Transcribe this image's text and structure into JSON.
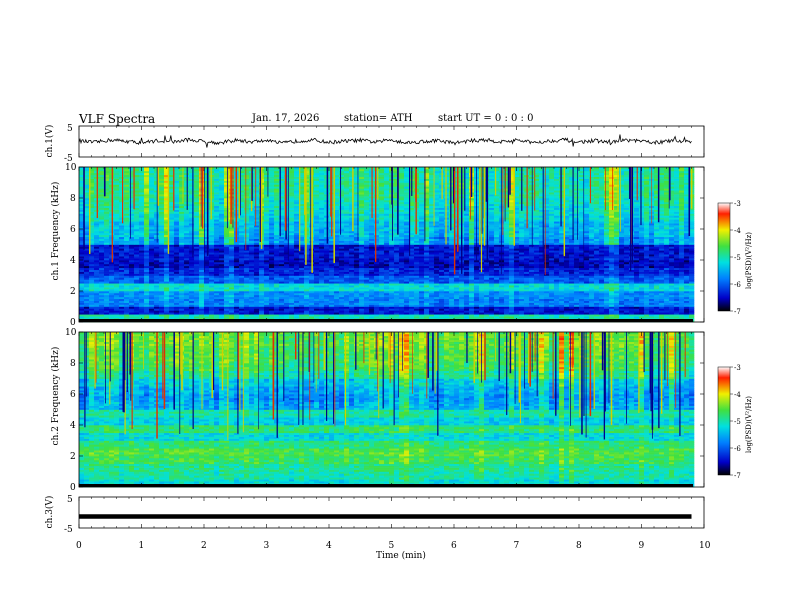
{
  "header": {
    "title": "VLF  Spectra",
    "date": "Jan. 17, 2026",
    "station": "station= ATH",
    "start": "start  UT  =   0  : 0   : 0"
  },
  "chart_data": [
    {
      "type": "line",
      "panel": "ch1-waveform",
      "ylabel": "ch.1(V)",
      "ylim": [
        -5,
        5
      ],
      "yticks": [
        "5",
        "-5"
      ],
      "xlim": [
        0,
        10
      ],
      "x": [
        0,
        0.25,
        0.5,
        0.75,
        1.0,
        1.25,
        1.5,
        1.75,
        2.0,
        2.25,
        2.5,
        2.75,
        3.0,
        3.25,
        3.5,
        3.75,
        4.0,
        4.25,
        4.5,
        4.75,
        5.0,
        5.25,
        5.5,
        5.75,
        6.0,
        6.25,
        6.5,
        6.75,
        7.0,
        7.25,
        7.5,
        7.75,
        8.0,
        8.25,
        8.5,
        8.75,
        9.0,
        9.25,
        9.5,
        9.8
      ],
      "y": [
        0.2,
        -0.3,
        0.5,
        0.1,
        -0.4,
        0.3,
        -0.2,
        0.6,
        0.0,
        -0.5,
        0.4,
        -0.1,
        0.3,
        -0.6,
        0.2,
        0.5,
        -0.3,
        0.1,
        0.4,
        -0.2,
        0.6,
        -0.4,
        0.0,
        0.3,
        -0.5,
        0.2,
        0.5,
        -0.1,
        0.4,
        -0.3,
        0.1,
        0.6,
        -0.2,
        0.3,
        -0.4,
        0.5,
        0.0,
        -0.3,
        0.2,
        0.1
      ]
    },
    {
      "type": "heatmap",
      "panel": "ch1-spectrogram",
      "ylabel": "ch.1 Frequency (kHz)",
      "ylim": [
        0,
        10
      ],
      "yticks": [
        "0",
        "2",
        "4",
        "6",
        "8",
        "10"
      ],
      "xlim": [
        0,
        10
      ],
      "colorbar": {
        "label": "log(PSD)(V²/Hz)",
        "ticks": [
          "-3",
          "-4",
          "-5",
          "-6",
          "-7"
        ],
        "range": [
          -7,
          -3
        ]
      },
      "freq_khz": [
        0.25,
        0.75,
        1.25,
        1.75,
        2.25,
        2.75,
        3.25,
        3.75,
        4.25,
        4.75,
        5.25,
        5.75,
        6.25,
        6.75,
        7.25,
        7.75,
        8.25,
        8.75,
        9.25,
        9.75
      ],
      "mean_log_psd": [
        -5.0,
        -6.4,
        -5.8,
        -5.7,
        -5.2,
        -6.0,
        -6.3,
        -6.5,
        -6.4,
        -6.4,
        -5.6,
        -5.4,
        -5.4,
        -5.2,
        -5.1,
        -5.0,
        -4.9,
        -4.9,
        -4.9,
        -4.9
      ]
    },
    {
      "type": "heatmap",
      "panel": "ch2-spectrogram",
      "ylabel": "ch.2 Frequency (kHz)",
      "ylim": [
        0,
        10
      ],
      "yticks": [
        "0",
        "2",
        "4",
        "6",
        "8",
        "10"
      ],
      "xlim": [
        0,
        10
      ],
      "colorbar": {
        "label": "log(PSD)(V²/Hz)",
        "ticks": [
          "-3",
          "-4",
          "-5",
          "-6",
          "-7"
        ],
        "range": [
          -7,
          -3
        ]
      },
      "freq_khz": [
        0.25,
        0.75,
        1.25,
        1.75,
        2.25,
        2.75,
        3.25,
        3.75,
        4.25,
        4.75,
        5.25,
        5.75,
        6.25,
        6.75,
        7.25,
        7.75,
        8.25,
        8.75,
        9.25,
        9.75
      ],
      "mean_log_psd": [
        -5.2,
        -5.0,
        -4.9,
        -4.7,
        -4.6,
        -4.8,
        -5.2,
        -4.8,
        -5.3,
        -5.0,
        -5.5,
        -5.6,
        -5.5,
        -5.3,
        -4.9,
        -4.7,
        -4.6,
        -4.6,
        -4.5,
        -4.5
      ]
    },
    {
      "type": "line",
      "panel": "ch3-waveform",
      "ylabel": "ch.3(V)",
      "ylim": [
        -5,
        5
      ],
      "yticks": [
        "5",
        "-5"
      ],
      "xlim": [
        0,
        10
      ],
      "x": [
        0,
        9.8
      ],
      "y": [
        -1.3,
        -1.3
      ]
    }
  ],
  "xaxis": {
    "label": "Time  (min)",
    "ticks": [
      "0",
      "1",
      "2",
      "3",
      "4",
      "5",
      "6",
      "7",
      "8",
      "9",
      "10"
    ]
  }
}
